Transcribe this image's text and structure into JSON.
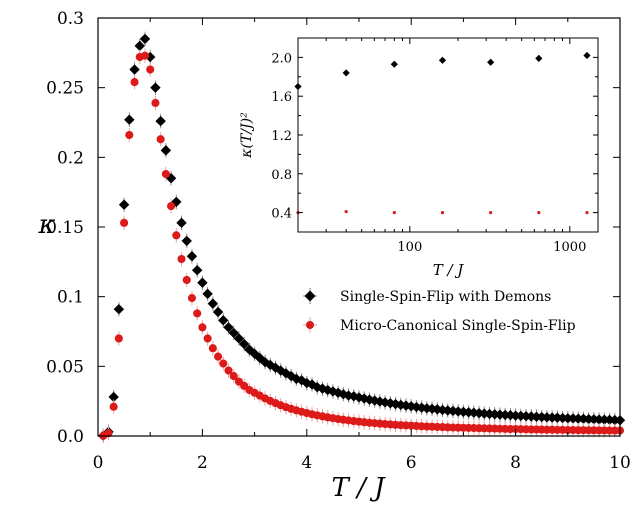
{
  "chart_data": [
    {
      "type": "scatter",
      "xlabel": "T / J",
      "ylabel": "κ",
      "xlim": [
        0,
        10
      ],
      "ylim": [
        0,
        0.3
      ],
      "xticks": [
        "0",
        "2",
        "4",
        "6",
        "8",
        "10"
      ],
      "yticks": [
        "0.0",
        "0.05",
        "0.1",
        "0.15",
        "0.2",
        "0.25",
        "0.3"
      ],
      "legend_position": "center-right",
      "series": [
        {
          "name": "Single-Spin-Flip with Demons",
          "color": "#000000",
          "marker": "diamond",
          "x": [
            0.1,
            0.2,
            0.3,
            0.4,
            0.5,
            0.6,
            0.7,
            0.8,
            0.9,
            1.0,
            1.1,
            1.2,
            1.3,
            1.4,
            1.5,
            1.6,
            1.7,
            1.8,
            1.9,
            2.0,
            2.1,
            2.2,
            2.3,
            2.4,
            2.5,
            2.6,
            2.7,
            2.8,
            2.9,
            3.0,
            3.1,
            3.2,
            3.3,
            3.4,
            3.5,
            3.6,
            3.7,
            3.8,
            3.9,
            4.0,
            4.1,
            4.2,
            4.3,
            4.4,
            4.5,
            4.6,
            4.7,
            4.8,
            4.9,
            5.0,
            5.1,
            5.2,
            5.3,
            5.4,
            5.5,
            5.6,
            5.7,
            5.8,
            5.9,
            6.0,
            6.1,
            6.2,
            6.3,
            6.4,
            6.5,
            6.6,
            6.7,
            6.8,
            6.9,
            7.0,
            7.1,
            7.2,
            7.3,
            7.4,
            7.5,
            7.6,
            7.7,
            7.8,
            7.9,
            8.0,
            8.1,
            8.2,
            8.3,
            8.4,
            8.5,
            8.6,
            8.7,
            8.8,
            8.9,
            9.0,
            9.1,
            9.2,
            9.3,
            9.4,
            9.5,
            9.6,
            9.7,
            9.8,
            9.9,
            10.0
          ],
          "y": [
            0.0002,
            0.003,
            0.028,
            0.091,
            0.166,
            0.227,
            0.263,
            0.28,
            0.285,
            0.272,
            0.25,
            0.226,
            0.205,
            0.185,
            0.168,
            0.153,
            0.14,
            0.129,
            0.119,
            0.11,
            0.102,
            0.095,
            0.089,
            0.083,
            0.078,
            0.074,
            0.07,
            0.066,
            0.062,
            0.059,
            0.056,
            0.053,
            0.051,
            0.049,
            0.047,
            0.045,
            0.043,
            0.041,
            0.04,
            0.038,
            0.037,
            0.035,
            0.034,
            0.033,
            0.032,
            0.031,
            0.03,
            0.029,
            0.0285,
            0.0277,
            0.0269,
            0.0261,
            0.0254,
            0.0247,
            0.0241,
            0.0235,
            0.0229,
            0.0223,
            0.0218,
            0.0213,
            0.0208,
            0.0203,
            0.0199,
            0.0195,
            0.0191,
            0.0187,
            0.0183,
            0.018,
            0.0176,
            0.0173,
            0.017,
            0.0167,
            0.0164,
            0.0161,
            0.0158,
            0.0156,
            0.0153,
            0.0151,
            0.0149,
            0.0146,
            0.0144,
            0.0142,
            0.014,
            0.0138,
            0.0136,
            0.0134,
            0.0132,
            0.0131,
            0.0129,
            0.0127,
            0.0126,
            0.0124,
            0.0123,
            0.0121,
            0.012,
            0.0118,
            0.0117,
            0.0116,
            0.0114,
            0.0113
          ]
        },
        {
          "name": "Micro-Canonical Single-Spin-Flip",
          "color": "#dd1a1a",
          "marker": "circle",
          "x": [
            0.1,
            0.2,
            0.3,
            0.4,
            0.5,
            0.6,
            0.7,
            0.8,
            0.9,
            1.0,
            1.1,
            1.2,
            1.3,
            1.4,
            1.5,
            1.6,
            1.7,
            1.8,
            1.9,
            2.0,
            2.1,
            2.2,
            2.3,
            2.4,
            2.5,
            2.6,
            2.7,
            2.8,
            2.9,
            3.0,
            3.1,
            3.2,
            3.3,
            3.4,
            3.5,
            3.6,
            3.7,
            3.8,
            3.9,
            4.0,
            4.1,
            4.2,
            4.3,
            4.4,
            4.5,
            4.6,
            4.7,
            4.8,
            4.9,
            5.0,
            5.1,
            5.2,
            5.3,
            5.4,
            5.5,
            5.6,
            5.7,
            5.8,
            5.9,
            6.0,
            6.1,
            6.2,
            6.3,
            6.4,
            6.5,
            6.6,
            6.7,
            6.8,
            6.9,
            7.0,
            7.1,
            7.2,
            7.3,
            7.4,
            7.5,
            7.6,
            7.7,
            7.8,
            7.9,
            8.0,
            8.1,
            8.2,
            8.3,
            8.4,
            8.5,
            8.6,
            8.7,
            8.8,
            8.9,
            9.0,
            9.1,
            9.2,
            9.3,
            9.4,
            9.5,
            9.6,
            9.7,
            9.8,
            9.9,
            10.0
          ],
          "y": [
            0.0002,
            0.002,
            0.021,
            0.07,
            0.153,
            0.216,
            0.254,
            0.272,
            0.273,
            0.263,
            0.239,
            0.213,
            0.188,
            0.165,
            0.144,
            0.127,
            0.112,
            0.099,
            0.088,
            0.078,
            0.07,
            0.063,
            0.057,
            0.052,
            0.047,
            0.043,
            0.039,
            0.036,
            0.033,
            0.031,
            0.029,
            0.027,
            0.0252,
            0.0236,
            0.0221,
            0.0207,
            0.0195,
            0.0184,
            0.0174,
            0.0165,
            0.0156,
            0.0148,
            0.0141,
            0.0134,
            0.0128,
            0.0122,
            0.0117,
            0.0112,
            0.0107,
            0.0103,
            0.0099,
            0.0095,
            0.0092,
            0.0089,
            0.0086,
            0.0083,
            0.008,
            0.0078,
            0.0076,
            0.0074,
            0.0072,
            0.007,
            0.0068,
            0.0067,
            0.0065,
            0.0064,
            0.0062,
            0.0061,
            0.006,
            0.0059,
            0.0058,
            0.0057,
            0.0056,
            0.0055,
            0.0054,
            0.0053,
            0.0052,
            0.0051,
            0.005,
            0.005,
            0.0049,
            0.0048,
            0.0047,
            0.0047,
            0.0046,
            0.0045,
            0.0045,
            0.0044,
            0.0044,
            0.0043,
            0.0043,
            0.0042,
            0.0042,
            0.0041,
            0.0041,
            0.004,
            0.004,
            0.0039,
            0.0039,
            0.0039
          ]
        }
      ]
    },
    {
      "type": "scatter",
      "xlabel": "T / J",
      "ylabel": "κ(T/J)²",
      "xscale": "log",
      "xlim": [
        20,
        1500
      ],
      "ylim": [
        0.2,
        2.2
      ],
      "xticks": [
        "100",
        "1000"
      ],
      "yticks": [
        "0.4",
        "0.8",
        "1.2",
        "1.6",
        "2.0"
      ],
      "series": [
        {
          "name": "Single-Spin-Flip with Demons",
          "color": "#000000",
          "marker": "diamond",
          "x": [
            20,
            40,
            80,
            160,
            320,
            640,
            1280
          ],
          "y": [
            1.7,
            1.84,
            1.93,
            1.97,
            1.95,
            1.99,
            2.02
          ]
        },
        {
          "name": "Micro-Canonical Single-Spin-Flip",
          "color": "#dd1a1a",
          "marker": "circle",
          "x": [
            20,
            40,
            80,
            160,
            320,
            640,
            1280
          ],
          "y": [
            0.4,
            0.41,
            0.4,
            0.4,
            0.4,
            0.4,
            0.4
          ]
        }
      ]
    }
  ]
}
